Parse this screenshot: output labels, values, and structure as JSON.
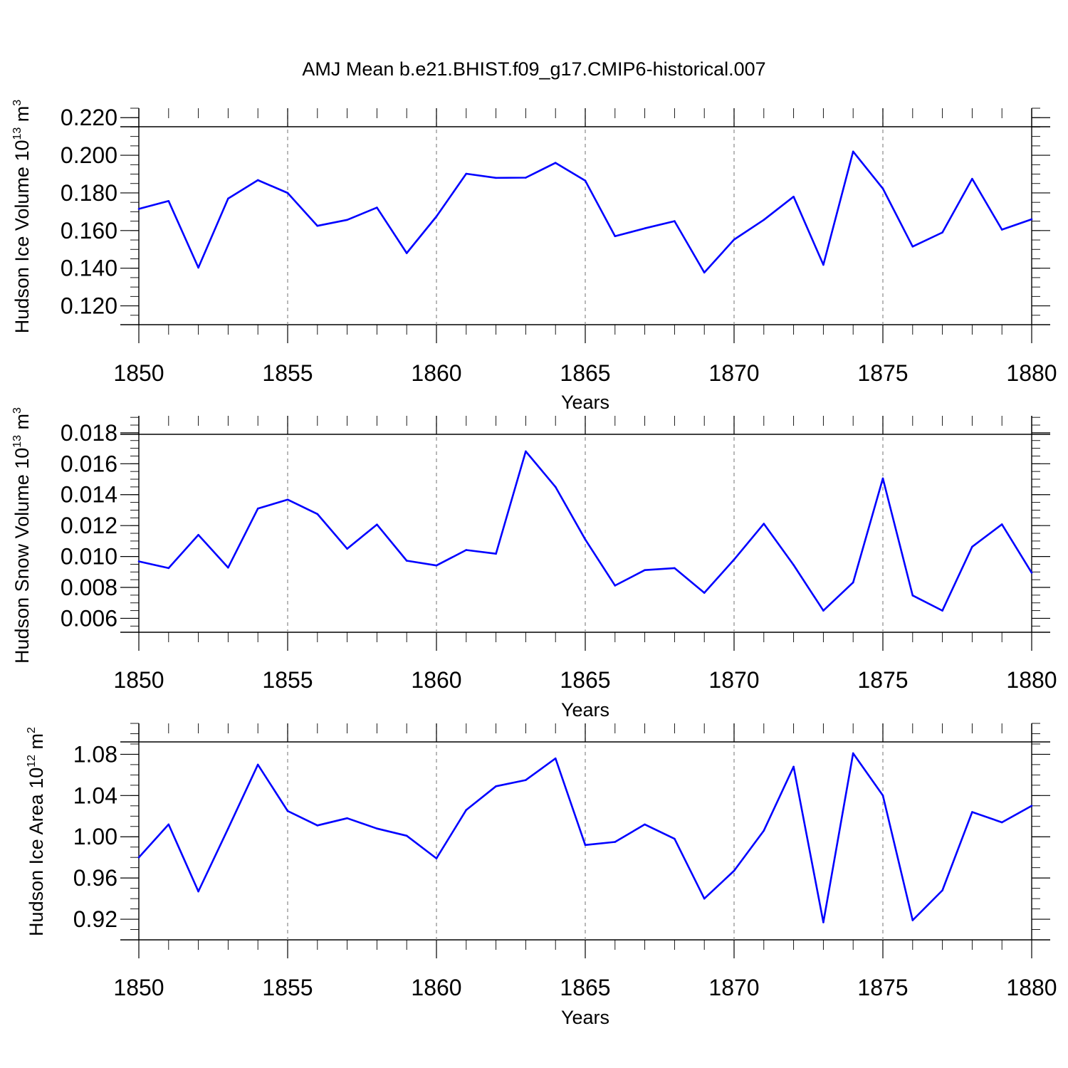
{
  "title": "AMJ Mean b.e21.BHIST.f09_g17.CMIP6-historical.007",
  "series_color": "#0000ff",
  "chart_data": [
    {
      "type": "line",
      "id": "ice-volume",
      "ylabel_main": "Hudson Ice Volume 10",
      "ylabel_exp": "13",
      "ylabel_unit": "m",
      "ylabel_unit_exp": "3",
      "xlabel": "Years",
      "xlim": [
        1850,
        1880
      ],
      "ylim": [
        0.11,
        0.225
      ],
      "xticks": [
        "1850",
        "1855",
        "1860",
        "1865",
        "1870",
        "1875",
        "1880"
      ],
      "yticks": [
        "0.220",
        "0.200",
        "0.180",
        "0.160",
        "0.140",
        "0.120"
      ],
      "ytick_values": [
        0.22,
        0.2,
        0.18,
        0.16,
        0.14,
        0.12
      ],
      "yminor_step": 0.005,
      "grid_x": [
        1855,
        1860,
        1865,
        1870,
        1875
      ],
      "x": [
        1850,
        1851,
        1852,
        1853,
        1854,
        1855,
        1856,
        1857,
        1858,
        1859,
        1860,
        1861,
        1862,
        1863,
        1864,
        1865,
        1866,
        1867,
        1868,
        1869,
        1870,
        1871,
        1872,
        1873,
        1874,
        1875,
        1876,
        1877,
        1878,
        1879,
        1880
      ],
      "values": [
        0.1715,
        0.1757,
        0.1403,
        0.177,
        0.1868,
        0.18,
        0.1625,
        0.1657,
        0.1722,
        0.148,
        0.1675,
        0.1902,
        0.188,
        0.1881,
        0.196,
        0.1865,
        0.157,
        0.1612,
        0.165,
        0.1377,
        0.1552,
        0.1657,
        0.178,
        0.1418,
        0.202,
        0.1823,
        0.1515,
        0.159,
        0.1875,
        0.1605,
        0.166
      ]
    },
    {
      "type": "line",
      "id": "snow-volume",
      "ylabel_main": "Hudson Snow Volume 10",
      "ylabel_exp": "13",
      "ylabel_unit": "m",
      "ylabel_unit_exp": "3",
      "xlabel": "Years",
      "xlim": [
        1850,
        1880
      ],
      "ylim": [
        0.0051,
        0.0191
      ],
      "xticks": [
        "1850",
        "1855",
        "1860",
        "1865",
        "1870",
        "1875",
        "1880"
      ],
      "yticks": [
        "0.018",
        "0.016",
        "0.014",
        "0.012",
        "0.010",
        "0.008",
        "0.006"
      ],
      "ytick_values": [
        0.018,
        0.016,
        0.014,
        0.012,
        0.01,
        0.008,
        0.006
      ],
      "yminor_step": 0.0005,
      "grid_x": [
        1855,
        1860,
        1865,
        1870,
        1875
      ],
      "x": [
        1850,
        1851,
        1852,
        1853,
        1854,
        1855,
        1856,
        1857,
        1858,
        1859,
        1860,
        1861,
        1862,
        1863,
        1864,
        1865,
        1866,
        1867,
        1868,
        1869,
        1870,
        1871,
        1872,
        1873,
        1874,
        1875,
        1876,
        1877,
        1878,
        1879,
        1880
      ],
      "values": [
        0.00968,
        0.00925,
        0.0114,
        0.00928,
        0.0131,
        0.01368,
        0.01275,
        0.0105,
        0.01207,
        0.00973,
        0.00942,
        0.01042,
        0.01018,
        0.0168,
        0.0145,
        0.0111,
        0.00812,
        0.00912,
        0.00925,
        0.00765,
        0.0098,
        0.01212,
        0.00945,
        0.0065,
        0.00832,
        0.01505,
        0.00748,
        0.0065,
        0.01063,
        0.01208,
        0.00895
      ]
    },
    {
      "type": "line",
      "id": "ice-area",
      "ylabel_main": "Hudson Ice Area 10",
      "ylabel_exp": "12",
      "ylabel_unit": "m",
      "ylabel_unit_exp": "2",
      "xlabel": "Years",
      "xlim": [
        1850,
        1880
      ],
      "ylim": [
        0.9,
        1.11
      ],
      "xticks": [
        "1850",
        "1855",
        "1860",
        "1865",
        "1870",
        "1875",
        "1880"
      ],
      "yticks": [
        "1.08",
        "1.04",
        "1.00",
        "0.96",
        "0.92"
      ],
      "ytick_values": [
        1.08,
        1.04,
        1.0,
        0.96,
        0.92
      ],
      "yminor_step": 0.01,
      "grid_x": [
        1855,
        1860,
        1865,
        1870,
        1875
      ],
      "x": [
        1850,
        1851,
        1852,
        1853,
        1854,
        1855,
        1856,
        1857,
        1858,
        1859,
        1860,
        1861,
        1862,
        1863,
        1864,
        1865,
        1866,
        1867,
        1868,
        1869,
        1870,
        1871,
        1872,
        1873,
        1874,
        1875,
        1876,
        1877,
        1878,
        1879,
        1880
      ],
      "values": [
        0.98,
        1.012,
        0.947,
        1.008,
        1.07,
        1.025,
        1.011,
        1.018,
        1.008,
        1.001,
        0.979,
        1.026,
        1.049,
        1.055,
        1.076,
        0.992,
        0.995,
        1.012,
        0.998,
        0.94,
        0.967,
        1.006,
        1.068,
        0.917,
        1.081,
        1.04,
        0.919,
        0.948,
        1.024,
        1.014,
        1.03
      ]
    }
  ]
}
